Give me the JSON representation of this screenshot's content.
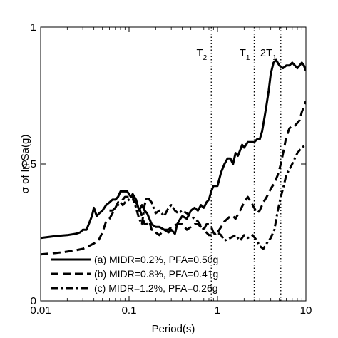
{
  "chart_data": {
    "type": "line",
    "xlabel": "Period(s)",
    "ylabel": "σ of ln Sa(g)",
    "xscale": "log",
    "xlim": [
      0.01,
      10
    ],
    "ylim": [
      0,
      1
    ],
    "grid": false,
    "legend_position": "bottom-left",
    "x_ticks": [
      {
        "value": 0.01,
        "label": "0.01"
      },
      {
        "value": 0.1,
        "label": "0.1"
      },
      {
        "value": 1,
        "label": "1"
      },
      {
        "value": 10,
        "label": "10"
      }
    ],
    "y_ticks": [
      {
        "value": 0,
        "label": "0"
      },
      {
        "value": 0.5,
        "label": "0.5"
      },
      {
        "value": 1,
        "label": "1"
      }
    ],
    "reference_lines": [
      {
        "x": 0.85,
        "base": "T",
        "sub": "2"
      },
      {
        "x": 2.6,
        "base": "T",
        "sub": "1"
      },
      {
        "x": 5.2,
        "base": "2T",
        "sub": "1"
      }
    ],
    "series": [
      {
        "name": "(a) MIDR=0.2%, PFA=0.50g",
        "style": "solid",
        "x": [
          0.01,
          0.015,
          0.02,
          0.025,
          0.028,
          0.03,
          0.033,
          0.036,
          0.038,
          0.04,
          0.043,
          0.046,
          0.05,
          0.055,
          0.06,
          0.065,
          0.07,
          0.075,
          0.08,
          0.085,
          0.09,
          0.095,
          0.1,
          0.105,
          0.11,
          0.115,
          0.12,
          0.13,
          0.14,
          0.15,
          0.16,
          0.18,
          0.2,
          0.22,
          0.25,
          0.28,
          0.3,
          0.33,
          0.35,
          0.38,
          0.4,
          0.45,
          0.5,
          0.55,
          0.6,
          0.65,
          0.7,
          0.75,
          0.8,
          0.85,
          0.9,
          0.95,
          1.0,
          1.1,
          1.2,
          1.3,
          1.4,
          1.5,
          1.6,
          1.7,
          1.8,
          1.9,
          2.0,
          2.2,
          2.4,
          2.6,
          2.8,
          3.0,
          3.2,
          3.4,
          3.6,
          3.8,
          4.0,
          4.3,
          4.6,
          5.0,
          5.5,
          6.0,
          6.5,
          7.0,
          7.5,
          8.0,
          8.5,
          9.0,
          9.5,
          10
        ],
        "values": [
          0.23,
          0.237,
          0.24,
          0.245,
          0.25,
          0.26,
          0.26,
          0.29,
          0.31,
          0.34,
          0.31,
          0.32,
          0.33,
          0.35,
          0.36,
          0.37,
          0.37,
          0.38,
          0.4,
          0.4,
          0.4,
          0.4,
          0.39,
          0.38,
          0.39,
          0.38,
          0.37,
          0.33,
          0.35,
          0.33,
          0.32,
          0.28,
          0.27,
          0.27,
          0.26,
          0.25,
          0.26,
          0.245,
          0.28,
          0.3,
          0.31,
          0.3,
          0.33,
          0.34,
          0.33,
          0.35,
          0.34,
          0.36,
          0.37,
          0.4,
          0.42,
          0.42,
          0.42,
          0.47,
          0.5,
          0.52,
          0.52,
          0.5,
          0.54,
          0.53,
          0.55,
          0.57,
          0.56,
          0.58,
          0.58,
          0.58,
          0.59,
          0.59,
          0.62,
          0.67,
          0.72,
          0.77,
          0.83,
          0.87,
          0.88,
          0.86,
          0.85,
          0.86,
          0.86,
          0.87,
          0.86,
          0.85,
          0.86,
          0.87,
          0.86,
          0.84
        ]
      },
      {
        "name": "(b) MIDR=0.8%, PFA=0.41g",
        "style": "dashed",
        "x": [
          0.01,
          0.015,
          0.02,
          0.025,
          0.03,
          0.035,
          0.04,
          0.045,
          0.05,
          0.055,
          0.06,
          0.065,
          0.07,
          0.075,
          0.08,
          0.09,
          0.1,
          0.11,
          0.12,
          0.13,
          0.14,
          0.15,
          0.16,
          0.17,
          0.18,
          0.19,
          0.2,
          0.22,
          0.25,
          0.28,
          0.3,
          0.35,
          0.4,
          0.45,
          0.5,
          0.55,
          0.6,
          0.65,
          0.7,
          0.75,
          0.8,
          0.85,
          0.9,
          0.95,
          1.0,
          1.1,
          1.2,
          1.3,
          1.4,
          1.5,
          1.6,
          1.8,
          2.0,
          2.2,
          2.4,
          2.6,
          2.8,
          3.0,
          3.3,
          3.6,
          4.0,
          4.4,
          4.8,
          5.2,
          5.6,
          6.0,
          6.5,
          7.0,
          7.5,
          8.0,
          8.5,
          9.0,
          9.5,
          10
        ],
        "values": [
          0.17,
          0.175,
          0.18,
          0.185,
          0.19,
          0.2,
          0.21,
          0.22,
          0.25,
          0.29,
          0.3,
          0.32,
          0.34,
          0.36,
          0.36,
          0.38,
          0.38,
          0.37,
          0.36,
          0.34,
          0.31,
          0.28,
          0.28,
          0.29,
          0.26,
          0.26,
          0.25,
          0.24,
          0.26,
          0.26,
          0.27,
          0.28,
          0.28,
          0.26,
          0.27,
          0.28,
          0.28,
          0.27,
          0.26,
          0.28,
          0.28,
          0.27,
          0.25,
          0.24,
          0.25,
          0.27,
          0.29,
          0.3,
          0.31,
          0.31,
          0.3,
          0.33,
          0.36,
          0.38,
          0.36,
          0.34,
          0.32,
          0.33,
          0.36,
          0.38,
          0.41,
          0.43,
          0.46,
          0.5,
          0.55,
          0.6,
          0.63,
          0.64,
          0.64,
          0.65,
          0.66,
          0.69,
          0.71,
          0.73
        ]
      },
      {
        "name": "(c) MIDR=1.2%, PFA=0.26g",
        "style": "dashdot",
        "x": [
          0.06,
          0.065,
          0.07,
          0.075,
          0.08,
          0.085,
          0.09,
          0.1,
          0.11,
          0.12,
          0.13,
          0.14,
          0.15,
          0.16,
          0.18,
          0.2,
          0.22,
          0.25,
          0.28,
          0.3,
          0.33,
          0.36,
          0.4,
          0.45,
          0.5,
          0.55,
          0.6,
          0.7,
          0.8,
          0.9,
          1.0,
          1.1,
          1.2,
          1.4,
          1.6,
          1.8,
          2.0,
          2.2,
          2.5,
          2.8,
          3.0,
          3.3,
          3.6,
          4.0,
          4.4,
          4.8,
          5.2,
          5.6,
          6.0,
          7.0,
          8.0,
          9.0,
          10
        ],
        "values": [
          0.33,
          0.33,
          0.34,
          0.35,
          0.36,
          0.35,
          0.36,
          0.37,
          0.38,
          0.34,
          0.3,
          0.28,
          0.35,
          0.38,
          0.36,
          0.32,
          0.33,
          0.31,
          0.34,
          0.35,
          0.33,
          0.32,
          0.33,
          0.32,
          0.31,
          0.3,
          0.29,
          0.26,
          0.24,
          0.24,
          0.25,
          0.24,
          0.22,
          0.23,
          0.24,
          0.22,
          0.24,
          0.23,
          0.24,
          0.22,
          0.2,
          0.19,
          0.21,
          0.23,
          0.26,
          0.33,
          0.38,
          0.42,
          0.46,
          0.5,
          0.54,
          0.56,
          0.57
        ]
      }
    ]
  }
}
